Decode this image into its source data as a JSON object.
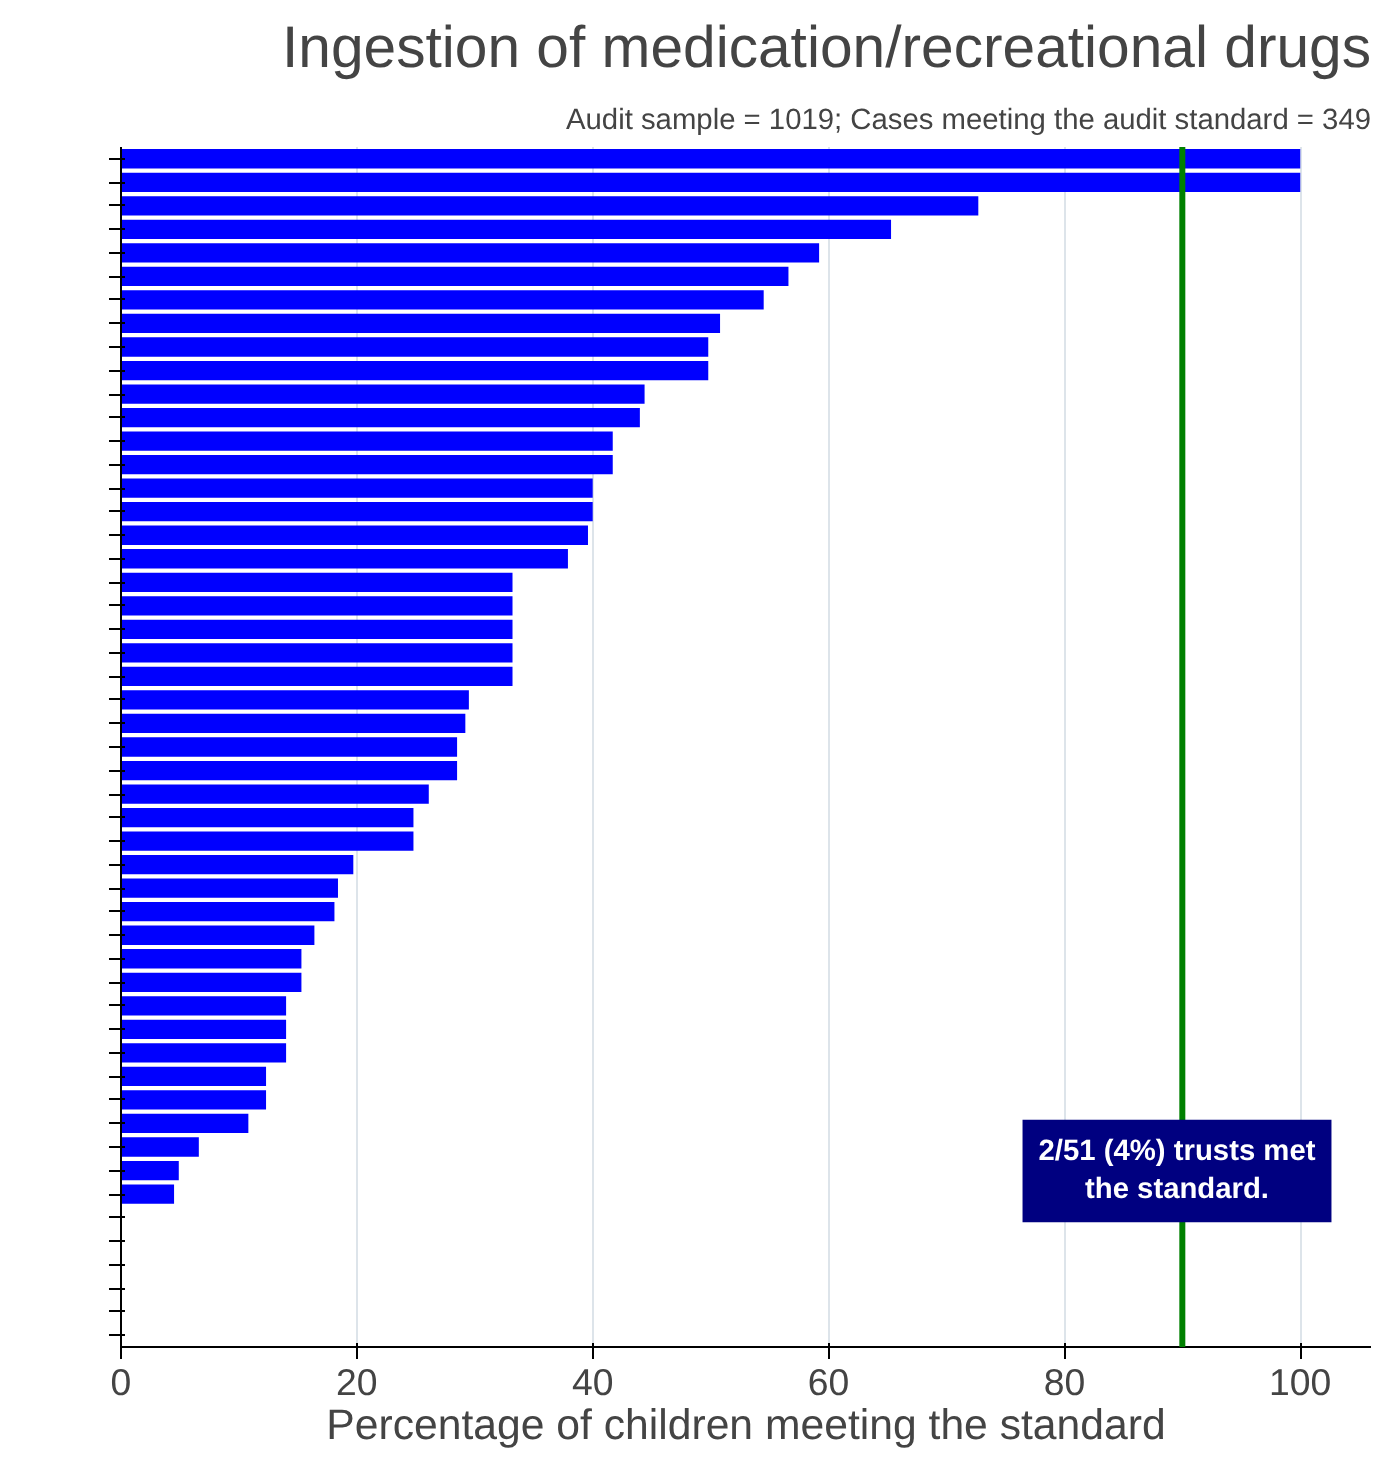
{
  "chart_data": {
    "type": "bar",
    "orientation": "horizontal",
    "title": "Ingestion of medication/recreational drugs",
    "subtitle": "Audit sample = 1019; Cases meeting the audit standard = 349",
    "xlabel": "Percentage of children meeting the standard",
    "categories": [
      null,
      null,
      null,
      null,
      null,
      null,
      null,
      null,
      null,
      null,
      null,
      null,
      null,
      null,
      null,
      null,
      null,
      null,
      null,
      null,
      null,
      null,
      null,
      null,
      null,
      null,
      null,
      null,
      null,
      null,
      null,
      null,
      null,
      null,
      null,
      null,
      null,
      null,
      null,
      null,
      null,
      null,
      null,
      null,
      null,
      null,
      null,
      null,
      null,
      null,
      null
    ],
    "values": [
      100,
      100,
      72.7,
      65.3,
      59.2,
      56.6,
      54.5,
      50.8,
      49.8,
      49.8,
      44.4,
      44.0,
      41.7,
      41.7,
      40.0,
      40.0,
      39.6,
      37.9,
      33.2,
      33.2,
      33.2,
      33.2,
      33.2,
      29.5,
      29.2,
      28.5,
      28.5,
      26.1,
      24.8,
      24.8,
      19.7,
      18.4,
      18.1,
      16.4,
      15.3,
      15.3,
      14.0,
      14.0,
      14.0,
      12.3,
      12.3,
      10.8,
      6.6,
      4.9,
      4.5,
      0,
      0,
      0,
      0,
      0,
      0
    ],
    "color": "#0000ff",
    "xlim": [
      0,
      106
    ],
    "xticks": [
      0,
      20,
      40,
      60,
      80,
      100
    ],
    "grid": "x",
    "ref_lines": [
      {
        "axis": "x",
        "value": 90,
        "color": "#008000"
      }
    ],
    "annotations": [
      "2/51 (4%) trusts met the standard."
    ]
  }
}
